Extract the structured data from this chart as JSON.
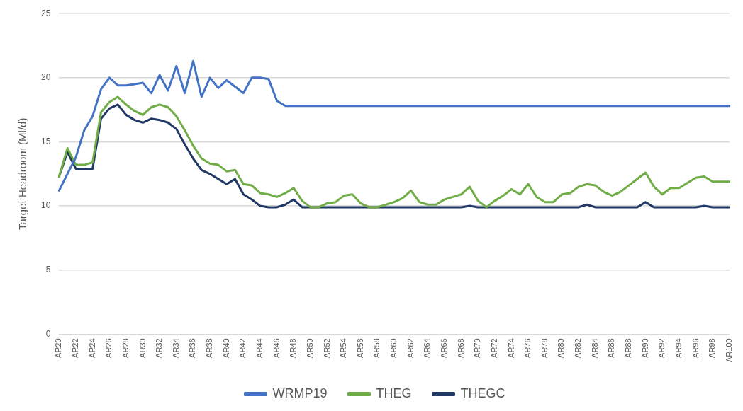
{
  "chart_data": {
    "type": "line",
    "ylabel": "Target Headroom (Ml/d)",
    "categories": [
      "AR20",
      null,
      "AR22",
      null,
      "AR24",
      null,
      "AR26",
      null,
      "AR28",
      null,
      "AR30",
      null,
      "AR32",
      null,
      "AR34",
      null,
      "AR36",
      null,
      "AR38",
      null,
      "AR40",
      null,
      "AR42",
      null,
      "AR44",
      null,
      "AR46",
      null,
      "AR48",
      null,
      "AR50",
      null,
      "AR52",
      null,
      "AR54",
      null,
      "AR56",
      null,
      "AR58",
      null,
      "AR60",
      null,
      "AR62",
      null,
      "AR64",
      null,
      "AR66",
      null,
      "AR68",
      null,
      "AR70",
      null,
      "AR72",
      null,
      "AR74",
      null,
      "AR76",
      null,
      "AR78",
      null,
      "AR80",
      null,
      "AR82",
      null,
      "AR84",
      null,
      "AR86",
      null,
      "AR88",
      null,
      "AR90",
      null,
      "AR92",
      null,
      "AR94",
      null,
      "AR96",
      null,
      "AR98",
      null,
      "AR100"
    ],
    "series": [
      {
        "name": "WRMP19",
        "color": "#4472c4",
        "values": [
          11.2,
          12.5,
          13.8,
          15.9,
          17.0,
          19.1,
          20.0,
          19.4,
          19.4,
          19.5,
          19.6,
          18.8,
          20.2,
          19.0,
          20.9,
          18.8,
          21.3,
          18.5,
          20.0,
          19.2,
          19.8,
          19.3,
          18.8,
          20.0,
          20.0,
          19.9,
          18.2,
          17.8,
          17.8,
          17.8,
          17.8,
          17.8,
          17.8,
          17.8,
          17.8,
          17.8,
          17.8,
          17.8,
          17.8,
          17.8,
          17.8,
          17.8,
          17.8,
          17.8,
          17.8,
          17.8,
          17.8,
          17.8,
          17.8,
          17.8,
          17.8,
          17.8,
          17.8,
          17.8,
          17.8,
          17.8,
          17.8,
          17.8,
          17.8,
          17.8,
          17.8,
          17.8,
          17.8,
          17.8,
          17.8,
          17.8,
          17.8,
          17.8,
          17.8,
          17.8,
          17.8,
          17.8,
          17.8,
          17.8,
          17.8,
          17.8,
          17.8,
          17.8,
          17.8,
          17.8,
          17.8
        ]
      },
      {
        "name": "THEG",
        "color": "#70ad47",
        "values": [
          12.3,
          14.5,
          13.2,
          13.2,
          13.4,
          17.3,
          18.1,
          18.5,
          17.9,
          17.4,
          17.1,
          17.7,
          17.9,
          17.7,
          17.0,
          15.9,
          14.7,
          13.7,
          13.3,
          13.2,
          12.7,
          12.8,
          11.7,
          11.6,
          11.0,
          10.9,
          10.7,
          11.0,
          11.4,
          10.4,
          9.9,
          9.9,
          10.2,
          10.3,
          10.8,
          10.9,
          10.2,
          9.9,
          9.9,
          10.1,
          10.3,
          10.6,
          11.2,
          10.3,
          10.1,
          10.1,
          10.5,
          10.7,
          10.9,
          11.5,
          10.4,
          9.9,
          10.4,
          10.8,
          11.3,
          10.9,
          11.7,
          10.7,
          10.3,
          10.3,
          10.9,
          11.0,
          11.5,
          11.7,
          11.6,
          11.1,
          10.8,
          11.1,
          11.6,
          12.1,
          12.6,
          11.5,
          10.9,
          11.4,
          11.4,
          11.8,
          12.2,
          12.3,
          11.9,
          11.9,
          11.9
        ]
      },
      {
        "name": "THEGC",
        "color": "#203864",
        "values": [
          12.3,
          14.2,
          12.9,
          12.9,
          12.9,
          16.8,
          17.6,
          17.9,
          17.1,
          16.7,
          16.5,
          16.8,
          16.7,
          16.5,
          16.0,
          14.8,
          13.7,
          12.8,
          12.5,
          12.1,
          11.7,
          12.1,
          10.9,
          10.5,
          10.0,
          9.9,
          9.9,
          10.1,
          10.5,
          9.9,
          9.9,
          9.9,
          9.9,
          9.9,
          9.9,
          9.9,
          9.9,
          9.9,
          9.9,
          9.9,
          9.9,
          9.9,
          9.9,
          9.9,
          9.9,
          9.9,
          9.9,
          9.9,
          9.9,
          10.0,
          9.9,
          9.9,
          9.9,
          9.9,
          9.9,
          9.9,
          9.9,
          9.9,
          9.9,
          9.9,
          9.9,
          9.9,
          9.9,
          10.1,
          9.9,
          9.9,
          9.9,
          9.9,
          9.9,
          9.9,
          10.3,
          9.9,
          9.9,
          9.9,
          9.9,
          9.9,
          9.9,
          10.0,
          9.9,
          9.9,
          9.9
        ]
      }
    ],
    "ylim": [
      0,
      25
    ],
    "yticks": [
      0,
      5,
      10,
      15,
      20,
      25
    ],
    "grid": "y",
    "legend": "bottom",
    "marker": "none",
    "line_style": "solid"
  }
}
